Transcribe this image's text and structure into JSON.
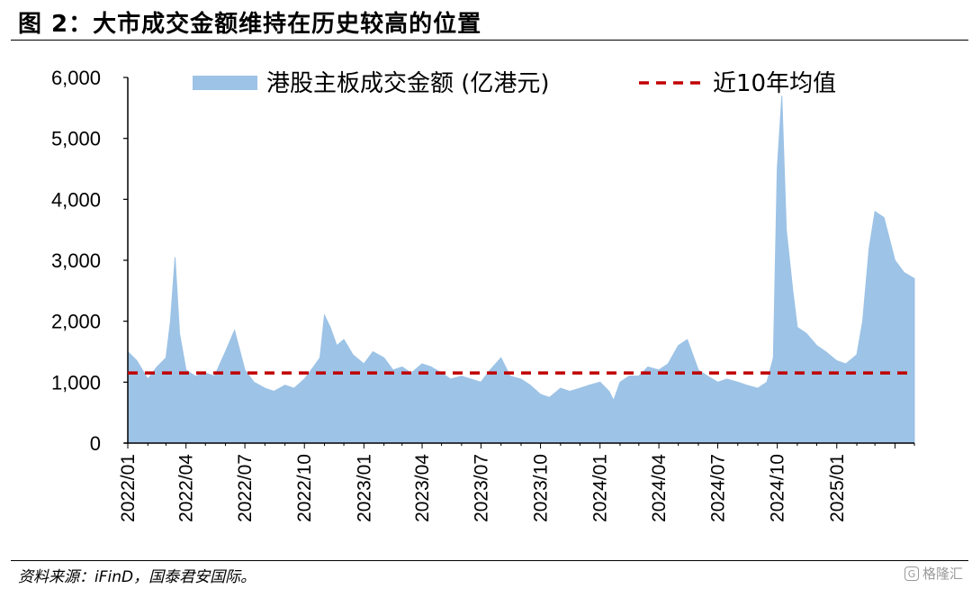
{
  "figure": {
    "title": "图 2：大市成交金额维持在历史较高的位置",
    "source": "资料来源：iFinD，国泰君安国际。",
    "watermark": "格隆汇"
  },
  "chart_data": {
    "type": "area",
    "ylim": [
      0,
      6000
    ],
    "yticks": [
      "0",
      "1,000",
      "2,000",
      "3,000",
      "4,000",
      "5,000",
      "6,000"
    ],
    "xticks": [
      "2022/01",
      "2022/04",
      "2022/07",
      "2022/10",
      "2023/01",
      "2023/04",
      "2023/07",
      "2023/10",
      "2024/01",
      "2024/04",
      "2024/07",
      "2024/10",
      "2025/01"
    ],
    "x_start": "2022-01",
    "x_end": "2025-05",
    "legend": {
      "placement": "top"
    },
    "colors": {
      "area": "#9dc3e6",
      "average": "#c00000"
    },
    "series": [
      {
        "name": "港股主板成交金额 (亿港元)",
        "type": "area",
        "x": [
          "2022-01-01",
          "2022-01-15",
          "2022-02-01",
          "2022-02-15",
          "2022-03-01",
          "2022-03-08",
          "2022-03-15",
          "2022-03-22",
          "2022-04-01",
          "2022-04-15",
          "2022-05-01",
          "2022-05-15",
          "2022-06-01",
          "2022-06-15",
          "2022-07-01",
          "2022-07-15",
          "2022-08-01",
          "2022-08-15",
          "2022-09-01",
          "2022-09-15",
          "2022-10-01",
          "2022-10-15",
          "2022-10-25",
          "2022-11-01",
          "2022-11-10",
          "2022-11-20",
          "2022-12-01",
          "2022-12-15",
          "2023-01-01",
          "2023-01-15",
          "2023-02-01",
          "2023-02-15",
          "2023-03-01",
          "2023-03-15",
          "2023-04-01",
          "2023-04-15",
          "2023-05-01",
          "2023-05-15",
          "2023-06-01",
          "2023-06-15",
          "2023-07-01",
          "2023-07-15",
          "2023-08-01",
          "2023-08-15",
          "2023-09-01",
          "2023-09-15",
          "2023-10-01",
          "2023-10-15",
          "2023-11-01",
          "2023-11-15",
          "2023-12-01",
          "2023-12-15",
          "2024-01-01",
          "2024-01-15",
          "2024-01-22",
          "2024-02-01",
          "2024-02-15",
          "2024-03-01",
          "2024-03-15",
          "2024-04-01",
          "2024-04-15",
          "2024-05-01",
          "2024-05-15",
          "2024-06-01",
          "2024-06-15",
          "2024-07-01",
          "2024-07-15",
          "2024-08-01",
          "2024-08-15",
          "2024-09-01",
          "2024-09-15",
          "2024-09-25",
          "2024-10-01",
          "2024-10-08",
          "2024-10-15",
          "2024-10-25",
          "2024-11-01",
          "2024-11-15",
          "2024-12-01",
          "2024-12-15",
          "2025-01-01",
          "2025-01-15",
          "2025-02-01",
          "2025-02-10",
          "2025-02-20",
          "2025-03-01",
          "2025-03-15",
          "2025-04-01",
          "2025-04-15",
          "2025-05-01"
        ],
        "values": [
          1500,
          1350,
          1050,
          1250,
          1400,
          2000,
          3050,
          1800,
          1200,
          1100,
          1150,
          1100,
          1500,
          1850,
          1200,
          1000,
          900,
          850,
          950,
          900,
          1050,
          1250,
          1400,
          2100,
          1900,
          1600,
          1700,
          1450,
          1300,
          1500,
          1400,
          1200,
          1250,
          1150,
          1300,
          1250,
          1150,
          1050,
          1100,
          1050,
          1000,
          1200,
          1400,
          1100,
          1050,
          950,
          800,
          750,
          900,
          850,
          900,
          950,
          1000,
          850,
          700,
          1000,
          1100,
          1100,
          1250,
          1200,
          1300,
          1600,
          1700,
          1200,
          1100,
          1000,
          1050,
          1000,
          950,
          900,
          1000,
          1400,
          4500,
          5700,
          3500,
          2500,
          1900,
          1800,
          1600,
          1500,
          1350,
          1300,
          1450,
          2000,
          3200,
          3800,
          3700,
          3000,
          2800,
          2700
        ]
      },
      {
        "name": "近10年均值",
        "type": "line",
        "style": "dashed",
        "x": [
          "2022-01-01",
          "2025-05-01"
        ],
        "values": [
          1150,
          1150
        ]
      }
    ]
  }
}
